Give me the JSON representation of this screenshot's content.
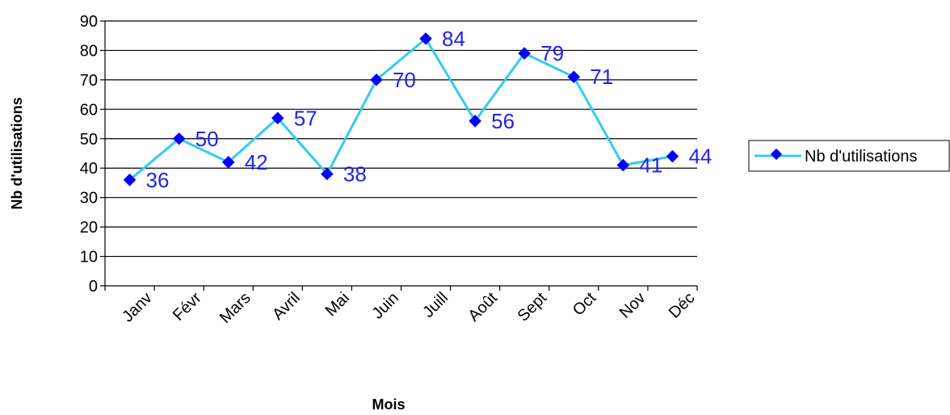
{
  "chart_data": {
    "type": "line",
    "title": "",
    "xlabel": "Mois",
    "ylabel": "Nb d'utilisations",
    "categories": [
      "Janv",
      "Févr",
      "Mars",
      "Avril",
      "Mai",
      "Juin",
      "Juill",
      "Août",
      "Sept",
      "Oct",
      "Nov",
      "Déc"
    ],
    "series": [
      {
        "name": "Nb d'utilisations",
        "values": [
          36,
          50,
          42,
          57,
          38,
          70,
          84,
          56,
          79,
          71,
          41,
          44
        ]
      }
    ],
    "ylim": [
      0,
      90
    ],
    "yticks": [
      "0",
      "10",
      "20",
      "30",
      "40",
      "50",
      "60",
      "70",
      "80",
      "90"
    ],
    "grid": "horizontal",
    "legend_position": "right",
    "data_labels": true,
    "colors": {
      "line": "#33CCEE",
      "marker": "#0000FF",
      "data_label": "#2222EE",
      "grid": "#000000"
    }
  }
}
